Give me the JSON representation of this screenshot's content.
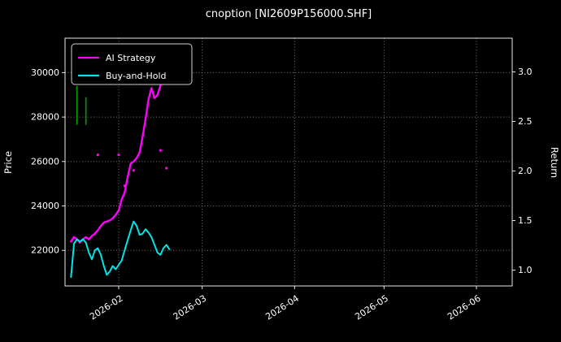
{
  "title": "cnoption [NI2609P156000.SHF]",
  "colors": {
    "background": "#000000",
    "text": "#ffffff",
    "grid": "#787878",
    "axis": "#e8e8e8",
    "legend_border": "#cfcfcf",
    "ai_strategy": "#ff00ff",
    "buy_and_hold": "#00e6e6",
    "candle_wick": "#00a000",
    "signal_dot": "#ff00ff"
  },
  "legend": {
    "items": [
      {
        "label": "AI Strategy",
        "color": "#ff00ff"
      },
      {
        "label": "Buy-and-Hold",
        "color": "#00e6e6"
      }
    ]
  },
  "axes": {
    "left_label": "Price",
    "right_label": "Return",
    "x_ticks": [
      {
        "value": "2026-02-01",
        "label": "2026-02"
      },
      {
        "value": "2026-03-01",
        "label": "2026-03"
      },
      {
        "value": "2026-04-01",
        "label": "2026-04"
      },
      {
        "value": "2026-05-01",
        "label": "2026-05"
      },
      {
        "value": "2026-06-01",
        "label": "2026-06"
      }
    ],
    "left_ticks": [
      {
        "value": 22000,
        "label": "22000"
      },
      {
        "value": 24000,
        "label": "24000"
      },
      {
        "value": 26000,
        "label": "26000"
      },
      {
        "value": 28000,
        "label": "28000"
      },
      {
        "value": 30000,
        "label": "30000"
      }
    ],
    "right_ticks": [
      {
        "value": 1.0,
        "label": "1.0"
      },
      {
        "value": 1.5,
        "label": "1.5"
      },
      {
        "value": 2.0,
        "label": "2.0"
      },
      {
        "value": 2.5,
        "label": "2.5"
      },
      {
        "value": 3.0,
        "label": "3.0"
      }
    ]
  },
  "chart_data": {
    "type": "line",
    "title": "cnoption [NI2609P156000.SHF]",
    "xlabel": "",
    "ylabel_left": "Price",
    "ylabel_right": "Return",
    "xlim": [
      "2026-01-14",
      "2026-06-13"
    ],
    "price_lim": [
      20400,
      31550
    ],
    "return_lim": [
      0.84,
      3.34
    ],
    "grid": true,
    "legend_position": "upper-left",
    "x": [
      "2026-01-16",
      "2026-01-17",
      "2026-01-18",
      "2026-01-19",
      "2026-01-20",
      "2026-01-21",
      "2026-01-22",
      "2026-01-23",
      "2026-01-24",
      "2026-01-25",
      "2026-01-26",
      "2026-01-27",
      "2026-01-28",
      "2026-01-29",
      "2026-01-30",
      "2026-01-31",
      "2026-02-01",
      "2026-02-02",
      "2026-02-03",
      "2026-02-04",
      "2026-02-05",
      "2026-02-06",
      "2026-02-07",
      "2026-02-08",
      "2026-02-09",
      "2026-02-10",
      "2026-02-11",
      "2026-02-12",
      "2026-02-13",
      "2026-02-14",
      "2026-02-15",
      "2026-02-16",
      "2026-02-17",
      "2026-02-18"
    ],
    "series": [
      {
        "name": "AI Strategy",
        "axis": "left",
        "color": "#ff00ff",
        "values": [
          22400,
          22600,
          22500,
          22350,
          22500,
          22600,
          22500,
          22650,
          22750,
          22900,
          23100,
          23250,
          23300,
          23350,
          23450,
          23600,
          23800,
          24300,
          24600,
          25300,
          25900,
          26000,
          26150,
          26400,
          27100,
          27900,
          28800,
          29300,
          28850,
          29000,
          29400,
          29900,
          30500,
          31200
        ]
      },
      {
        "name": "Buy-and-Hold",
        "axis": "left",
        "color": "#00e6e6",
        "values": [
          20800,
          22300,
          22500,
          22400,
          22500,
          22350,
          21900,
          21600,
          22000,
          22100,
          21800,
          21300,
          20900,
          21050,
          21300,
          21150,
          21350,
          21550,
          22000,
          22450,
          22900,
          23300,
          23100,
          22700,
          22750,
          22950,
          22800,
          22600,
          22250,
          21900,
          21800,
          22100,
          22250,
          22050
        ]
      }
    ],
    "candlestick_wicks": [
      {
        "date": "2026-01-18",
        "low": 27650,
        "high": 29400
      },
      {
        "date": "2026-01-21",
        "low": 27650,
        "high": 28900
      }
    ],
    "scatter_points": [
      {
        "date": "2026-01-25",
        "value": 26300
      },
      {
        "date": "2026-02-01",
        "value": 26300
      },
      {
        "date": "2026-02-03",
        "value": 24900
      },
      {
        "date": "2026-02-06",
        "value": 25600
      },
      {
        "date": "2026-02-15",
        "value": 26500
      },
      {
        "date": "2026-02-17",
        "value": 25700
      }
    ]
  }
}
